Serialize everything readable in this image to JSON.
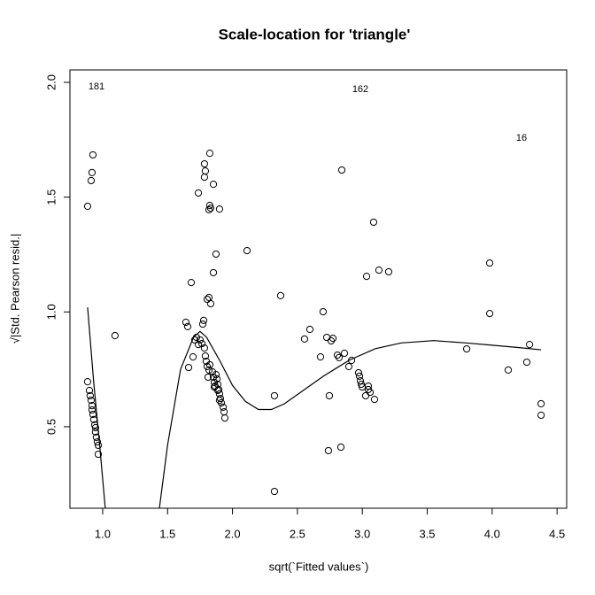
{
  "chart_data": {
    "type": "scatter",
    "title": "Scale-location for 'triangle'",
    "x_label": "sqrt(`Fitted values`)",
    "y_label": "√|Std. Pearson resid.|",
    "xlim": [
      0.748,
      4.574
    ],
    "ylim": [
      0.145,
      2.054
    ],
    "xticks": [
      {
        "value": 1.0,
        "label": "1.0"
      },
      1.5,
      {
        "value": 2.0,
        "label": "2.0"
      },
      2.5,
      {
        "value": 3.0,
        "label": "3.0"
      },
      3.5,
      {
        "value": 4.0,
        "label": "4.0"
      },
      4.5
    ],
    "yticks": [
      0.5,
      {
        "value": 1.0,
        "label": "1.0"
      },
      1.5,
      {
        "value": 2.0,
        "label": "2.0"
      }
    ],
    "color": "#000000",
    "x": [
      0.884,
      0.911,
      0.918,
      0.925,
      0.884,
      0.898,
      0.904,
      0.911,
      0.918,
      0.918,
      0.925,
      0.932,
      0.939,
      0.945,
      0.945,
      0.952,
      0.959,
      0.966,
      0.966,
      1.095,
      1.641,
      1.655,
      1.682,
      1.662,
      1.696,
      1.71,
      1.723,
      1.737,
      1.75,
      1.764,
      1.771,
      1.778,
      1.784,
      1.791,
      1.798,
      1.805,
      1.819,
      1.812,
      1.825,
      1.832,
      1.805,
      1.819,
      1.737,
      1.784,
      1.791,
      1.784,
      1.825,
      1.825,
      1.832,
      1.819,
      1.853,
      1.9,
      1.873,
      1.853,
      1.846,
      1.853,
      1.86,
      1.866,
      1.873,
      1.88,
      1.887,
      1.894,
      1.9,
      1.907,
      1.914,
      1.928,
      1.935,
      1.941,
      1.86,
      1.887,
      1.9,
      2.112,
      2.323,
      2.323,
      2.371,
      2.555,
      2.596,
      2.678,
      2.698,
      2.726,
      2.739,
      2.746,
      2.76,
      2.774,
      2.808,
      2.821,
      2.835,
      2.842,
      2.862,
      2.896,
      2.917,
      2.971,
      2.978,
      2.985,
      2.992,
      2.999,
      3.026,
      3.033,
      3.046,
      3.046,
      3.06,
      3.087,
      3.094,
      3.128,
      3.203,
      3.804,
      3.981,
      3.981,
      4.124,
      4.267,
      4.288,
      4.377,
      4.377
    ],
    "values": [
      1.46,
      1.572,
      1.607,
      1.684,
      0.696,
      0.658,
      0.635,
      0.615,
      0.592,
      0.573,
      0.554,
      0.531,
      0.508,
      0.496,
      0.477,
      0.454,
      0.434,
      0.419,
      0.38,
      0.897,
      0.955,
      0.936,
      1.128,
      0.758,
      0.804,
      0.878,
      0.889,
      0.858,
      0.878,
      0.862,
      0.947,
      0.963,
      0.843,
      0.808,
      0.785,
      0.762,
      0.747,
      0.716,
      0.77,
      1.036,
      1.055,
      1.063,
      1.518,
      1.645,
      1.614,
      1.587,
      1.691,
      1.464,
      1.452,
      1.445,
      1.556,
      1.448,
      1.252,
      1.171,
      0.739,
      0.716,
      0.693,
      0.677,
      0.727,
      0.708,
      0.685,
      0.662,
      0.643,
      0.623,
      0.604,
      0.585,
      0.565,
      0.538,
      0.673,
      0.658,
      0.615,
      1.267,
      0.218,
      0.635,
      1.071,
      0.882,
      0.924,
      0.804,
      1.001,
      0.889,
      0.396,
      0.635,
      0.874,
      0.885,
      0.812,
      0.801,
      0.411,
      1.618,
      0.82,
      0.762,
      0.789,
      0.735,
      0.72,
      0.7,
      0.685,
      0.673,
      0.635,
      1.155,
      0.662,
      0.677,
      0.65,
      1.391,
      0.619,
      1.182,
      1.175,
      0.839,
      1.213,
      0.993,
      0.747,
      0.781,
      0.858,
      0.6,
      0.55
    ],
    "smooth": {
      "x": [
        0.884,
        0.93,
        0.98,
        1.02,
        1.2,
        1.437,
        1.5,
        1.6,
        1.7,
        1.75,
        1.8,
        1.9,
        2.0,
        2.1,
        2.2,
        2.3,
        2.4,
        2.5,
        2.7,
        2.9,
        3.1,
        3.3,
        3.55,
        3.8,
        4.0,
        4.2,
        4.377
      ],
      "values": [
        1.02,
        0.7,
        0.4,
        0.145,
        null,
        0.145,
        0.42,
        0.75,
        0.89,
        0.915,
        0.89,
        0.79,
        0.68,
        0.61,
        0.575,
        0.575,
        0.6,
        0.64,
        0.72,
        0.79,
        0.84,
        0.865,
        0.875,
        0.865,
        0.855,
        0.845,
        0.835
      ]
    },
    "annotations": [
      "181",
      "162",
      "16"
    ]
  }
}
